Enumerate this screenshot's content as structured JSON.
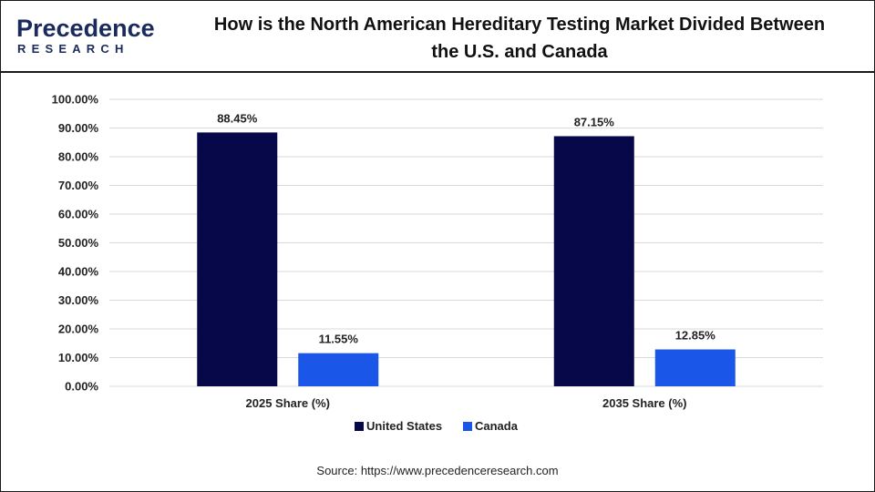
{
  "brand": {
    "logo_top": "Precedence",
    "logo_bottom": "RESEARCH"
  },
  "header": {
    "title_line1": "How is the North American Hereditary Testing Market Divided Between",
    "title_line2": "the U.S. and Canada"
  },
  "source": "Source: https://www.precedenceresearch.com",
  "colors": {
    "brand": "#1b2a5c",
    "united_states": "#06084a",
    "canada": "#1a56e8"
  },
  "chart_data": {
    "type": "bar",
    "categories": [
      "2025 Share (%)",
      "2035 Share (%)"
    ],
    "series": [
      {
        "name": "United States",
        "values": [
          88.45,
          87.15
        ],
        "labels": [
          "88.45%",
          "87.15%"
        ]
      },
      {
        "name": "Canada",
        "values": [
          11.55,
          12.85
        ],
        "labels": [
          "11.55%",
          "12.85%"
        ]
      }
    ],
    "y_ticks": [
      "0.00%",
      "10.00%",
      "20.00%",
      "30.00%",
      "40.00%",
      "50.00%",
      "60.00%",
      "70.00%",
      "80.00%",
      "90.00%",
      "100.00%"
    ],
    "ylim": [
      0,
      100
    ],
    "grid": true,
    "legend_position": "bottom"
  }
}
